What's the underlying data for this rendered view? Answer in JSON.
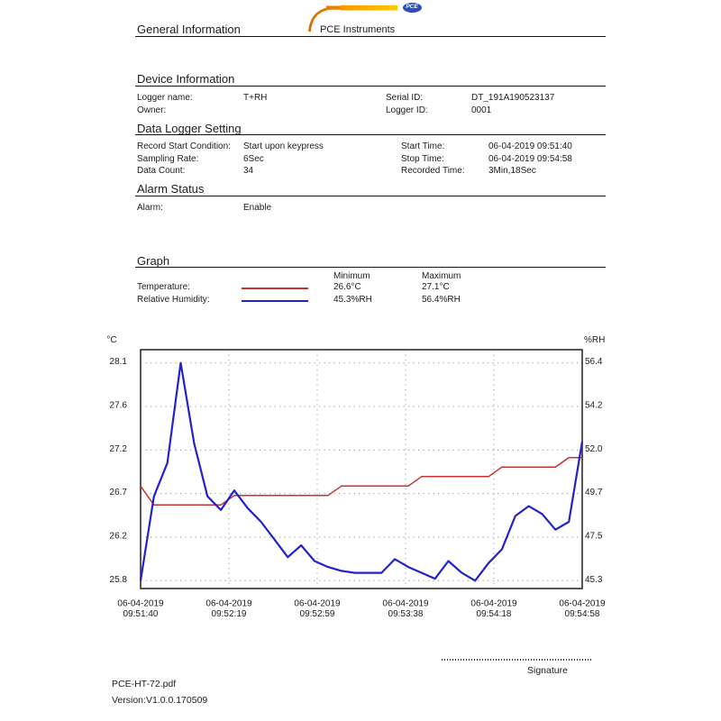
{
  "header": {
    "title": "General Information",
    "brand": "PCE Instruments",
    "logo_text": "PCE"
  },
  "sections": {
    "device": {
      "title": "Device Information",
      "rows": [
        [
          "Logger name:",
          "T+RH",
          "Serial ID:",
          "DT_191A190523137"
        ],
        [
          "Owner:",
          "",
          "Logger ID:",
          "0001"
        ]
      ]
    },
    "logger": {
      "title": "Data Logger Setting",
      "rows": [
        [
          "Record Start Condition:",
          "Start upon keypress",
          "Start Time:",
          "06-04-2019 09:51:40"
        ],
        [
          "Sampling Rate:",
          "6Sec",
          "Stop Time:",
          "06-04-2019 09:54:58"
        ],
        [
          "Data Count:",
          "34",
          "Recorded Time:",
          "3Min,18Sec"
        ]
      ]
    },
    "alarm": {
      "title": "Alarm Status",
      "rows": [
        [
          "Alarm:",
          "Enable",
          "",
          ""
        ]
      ]
    },
    "graph": {
      "title": "Graph",
      "legend_headers": [
        "Minimum",
        "Maximum"
      ],
      "legend_rows": [
        {
          "label": "Temperature:",
          "color": "#c53232",
          "min": "26.6°C",
          "max": "27.1°C"
        },
        {
          "label": "Relative Humidity:",
          "color": "#2222cc",
          "min": "45.3%RH",
          "max": "56.4%RH"
        }
      ]
    }
  },
  "chart_data": {
    "type": "line",
    "x_date": "06-04-2019",
    "x_ticks": [
      "09:51:40",
      "09:52:19",
      "09:52:59",
      "09:53:38",
      "09:54:18",
      "09:54:58"
    ],
    "left_axis": {
      "label": "°C",
      "min": 25.8,
      "max": 28.1,
      "ticks": [
        "28.1",
        "27.6",
        "27.2",
        "26.7",
        "26.2",
        "25.8"
      ]
    },
    "right_axis": {
      "label": "%RH",
      "min": 45.3,
      "max": 56.4,
      "ticks": [
        "56.4",
        "54.2",
        "52.0",
        "49.7",
        "47.5",
        "45.3"
      ]
    },
    "grid": true,
    "series": [
      {
        "name": "Temperature",
        "axis": "left",
        "color": "#c53232",
        "values": [
          26.8,
          26.6,
          26.6,
          26.6,
          26.6,
          26.6,
          26.6,
          26.7,
          26.7,
          26.7,
          26.7,
          26.7,
          26.7,
          26.7,
          26.7,
          26.8,
          26.8,
          26.8,
          26.8,
          26.8,
          26.8,
          26.9,
          26.9,
          26.9,
          26.9,
          26.9,
          26.9,
          27.0,
          27.0,
          27.0,
          27.0,
          27.0,
          27.1,
          27.1
        ]
      },
      {
        "name": "Relative Humidity",
        "axis": "right",
        "color": "#2222cc",
        "values": [
          45.3,
          49.6,
          51.3,
          56.4,
          52.3,
          49.6,
          48.9,
          49.9,
          49.0,
          48.3,
          47.4,
          46.5,
          47.1,
          46.3,
          46.0,
          45.8,
          45.7,
          45.7,
          45.7,
          46.4,
          46.0,
          45.7,
          45.4,
          46.3,
          45.7,
          45.3,
          46.2,
          46.9,
          48.6,
          49.1,
          48.7,
          47.9,
          48.3,
          52.4
        ]
      }
    ]
  },
  "footer": {
    "signature_label": "Signature",
    "file_name": "PCE-HT-72.pdf",
    "version": "Version:V1.0.0.170509"
  }
}
